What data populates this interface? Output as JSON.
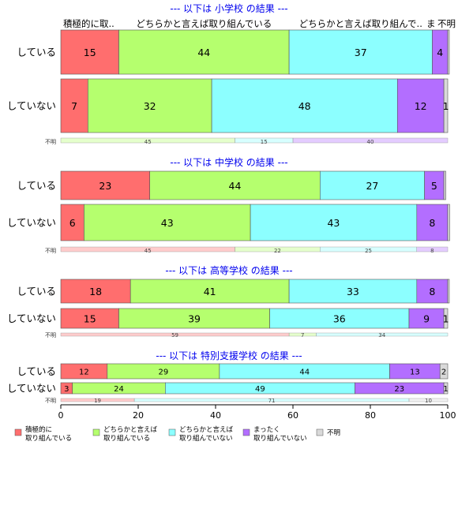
{
  "chart_data": {
    "type": "bar",
    "orientation": "horizontal",
    "stacked": true,
    "xlim": [
      0,
      100
    ],
    "x_ticks": [
      "0",
      "20",
      "40",
      "60",
      "80",
      "100"
    ],
    "grid": false,
    "legend_position": "bottom-left",
    "top_labels": [
      {
        "text": "積極的に取..",
        "value": 15
      },
      {
        "text": "どちらかと言えば取り組んでいる",
        "value": 44
      },
      {
        "text": "どちらかと言えば取り組んで..",
        "value": 37
      },
      {
        "text": "ま",
        "value": 4
      },
      {
        "text": "不明",
        "value": 0.4
      }
    ],
    "series": [
      {
        "name": "積極的に\n取り組んでいる",
        "color": "#FF6E6E"
      },
      {
        "name": "どちらかと言えば\n取り組んでいる",
        "color": "#B5FF6E"
      },
      {
        "name": "どちらかと言えば\n取り組んでいない",
        "color": "#8CFFFF"
      },
      {
        "name": "まったく\n取り組んでいない",
        "color": "#B36EFF"
      },
      {
        "name": "不明",
        "color": "#D9D9D9"
      }
    ],
    "panels": [
      {
        "title": "--- 以下は 小学校 の結果 ---",
        "rows": [
          {
            "label": "している",
            "values": [
              15,
              44,
              37,
              4,
              0.4
            ],
            "labels": [
              "15",
              "44",
              "37",
              "4",
              ""
            ]
          },
          {
            "label": "していない",
            "values": [
              7,
              32,
              48,
              12,
              1
            ],
            "labels": [
              "7",
              "32",
              "48",
              "12",
              "1"
            ]
          }
        ],
        "unknown_row": {
          "label": "不明",
          "values": [
            0,
            45,
            15,
            40,
            0
          ],
          "labels": [
            "",
            "45",
            "15",
            "40",
            ""
          ]
        }
      },
      {
        "title": "--- 以下は 中学校 の結果 ---",
        "rows": [
          {
            "label": "している",
            "values": [
              23,
              44,
              27,
              5,
              0.5
            ],
            "labels": [
              "23",
              "44",
              "27",
              "5",
              ""
            ]
          },
          {
            "label": "していない",
            "values": [
              6,
              43,
              43,
              8,
              0.5
            ],
            "labels": [
              "6",
              "43",
              "43",
              "8",
              ""
            ]
          }
        ],
        "unknown_row": {
          "label": "不明",
          "values": [
            45,
            22,
            25,
            8,
            0
          ],
          "labels": [
            "45",
            "22",
            "25",
            "8",
            ""
          ]
        }
      },
      {
        "title": "--- 以下は 高等学校 の結果 ---",
        "rows": [
          {
            "label": "している",
            "values": [
              18,
              41,
              33,
              8,
              0.4
            ],
            "labels": [
              "18",
              "41",
              "33",
              "8",
              ""
            ]
          },
          {
            "label": "していない",
            "values": [
              15,
              39,
              36,
              9,
              1
            ],
            "labels": [
              "15",
              "39",
              "36",
              "9",
              "1"
            ]
          }
        ],
        "unknown_row": {
          "label": "不明",
          "values": [
            59,
            7,
            34,
            0,
            0
          ],
          "labels": [
            "59",
            "7",
            "34",
            "",
            ""
          ]
        }
      },
      {
        "title": "--- 以下は 特別支援学校 の結果 ---",
        "rows": [
          {
            "label": "している",
            "values": [
              12,
              29,
              44,
              13,
              2
            ],
            "labels": [
              "12",
              "29",
              "44",
              "13",
              "2"
            ]
          },
          {
            "label": "していない",
            "values": [
              3,
              24,
              49,
              23,
              1
            ],
            "labels": [
              "3",
              "24",
              "49",
              "23",
              "1"
            ]
          }
        ],
        "unknown_row": {
          "label": "不明",
          "values": [
            19,
            0,
            71,
            0,
            10
          ],
          "labels": [
            "19",
            "",
            "71",
            "",
            "10"
          ]
        }
      }
    ]
  }
}
